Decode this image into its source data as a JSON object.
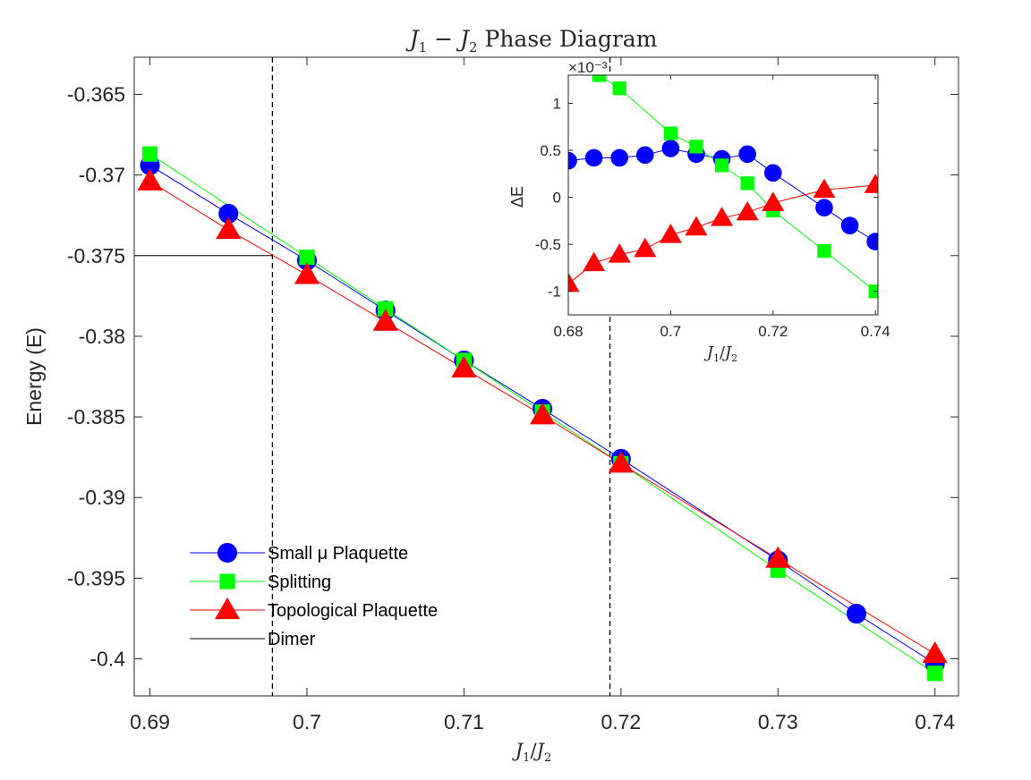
{
  "chart_data": [
    {
      "type": "line",
      "title": "J₁ − J₂ Phase Diagram",
      "xlabel": "J₁/J₂",
      "ylabel": "Energy (E)",
      "xlim": [
        0.689,
        0.7415
      ],
      "ylim": [
        -0.4023,
        -0.3627
      ],
      "xticks": [
        "0.69",
        "0.7",
        "0.71",
        "0.72",
        "0.73",
        "0.74"
      ],
      "yticks": [
        "-0.365",
        "-0.37",
        "-0.375",
        "-0.38",
        "-0.385",
        "-0.39",
        "-0.395",
        "-0.4"
      ],
      "legend_position": "bottom-left",
      "series": [
        {
          "name": "Small μ Plaquette",
          "color": "#0000ff",
          "marker": "circle",
          "x": [
            0.69,
            0.695,
            0.7,
            0.705,
            0.71,
            0.715,
            0.72,
            0.73,
            0.735,
            0.74
          ],
          "y": [
            -0.3694,
            -0.3724,
            -0.3753,
            -0.3784,
            -0.3815,
            -0.3845,
            -0.3876,
            -0.3939,
            -0.3972,
            -0.4003
          ]
        },
        {
          "name": "Splitting",
          "color": "#00ff00",
          "marker": "square",
          "x": [
            0.69,
            0.7,
            0.705,
            0.71,
            0.715,
            0.72,
            0.73,
            0.74
          ],
          "y": [
            -0.3687,
            -0.3751,
            -0.3783,
            -0.3815,
            -0.3847,
            -0.3879,
            -0.3945,
            -0.4009
          ]
        },
        {
          "name": "Topological Plaquette",
          "color": "#ff0000",
          "marker": "triangle",
          "x": [
            0.69,
            0.695,
            0.7,
            0.705,
            0.71,
            0.715,
            0.72,
            0.73,
            0.74
          ],
          "y": [
            -0.3704,
            -0.3734,
            -0.3762,
            -0.3791,
            -0.382,
            -0.3849,
            -0.3879,
            -0.3938,
            -0.3997
          ]
        },
        {
          "name": "Dimer",
          "color": "#000000",
          "marker": "none",
          "x": [
            0.689,
            0.6978
          ],
          "y": [
            -0.375,
            -0.375
          ]
        }
      ],
      "vertical_dashed_lines_x": [
        0.6978,
        0.7193
      ]
    },
    {
      "type": "line",
      "title": "",
      "xlabel": "J₁/J₂",
      "ylabel": "ΔE",
      "exponent_label": "×10⁻³",
      "xlim": [
        0.68,
        0.7405
      ],
      "ylim": [
        -1.25,
        1.3
      ],
      "xticks": [
        "0.68",
        "0.7",
        "0.72",
        "0.74"
      ],
      "yticks": [
        "1",
        "0.5",
        "0",
        "-0.5",
        "-1"
      ],
      "series": [
        {
          "name": "Small μ Plaquette",
          "color": "#0000ff",
          "marker": "circle",
          "x": [
            0.68,
            0.685,
            0.69,
            0.695,
            0.7,
            0.705,
            0.71,
            0.715,
            0.72,
            0.73,
            0.735,
            0.74
          ],
          "y": [
            0.39,
            0.42,
            0.42,
            0.45,
            0.52,
            0.46,
            0.41,
            0.46,
            0.26,
            -0.11,
            -0.3,
            -0.47
          ]
        },
        {
          "name": "Splitting",
          "color": "#00ff00",
          "marker": "square",
          "x": [
            0.686,
            0.69,
            0.7,
            0.705,
            0.71,
            0.715,
            0.72,
            0.73,
            0.74
          ],
          "y": [
            1.3,
            1.16,
            0.68,
            0.54,
            0.34,
            0.15,
            -0.14,
            -0.57,
            -1.0
          ]
        },
        {
          "name": "Topological Plaquette",
          "color": "#ff0000",
          "marker": "triangle",
          "x": [
            0.68,
            0.685,
            0.69,
            0.695,
            0.7,
            0.705,
            0.71,
            0.715,
            0.72,
            0.73,
            0.74
          ],
          "y": [
            -0.92,
            -0.7,
            -0.61,
            -0.55,
            -0.4,
            -0.32,
            -0.22,
            -0.16,
            -0.06,
            0.08,
            0.13
          ]
        }
      ]
    }
  ]
}
